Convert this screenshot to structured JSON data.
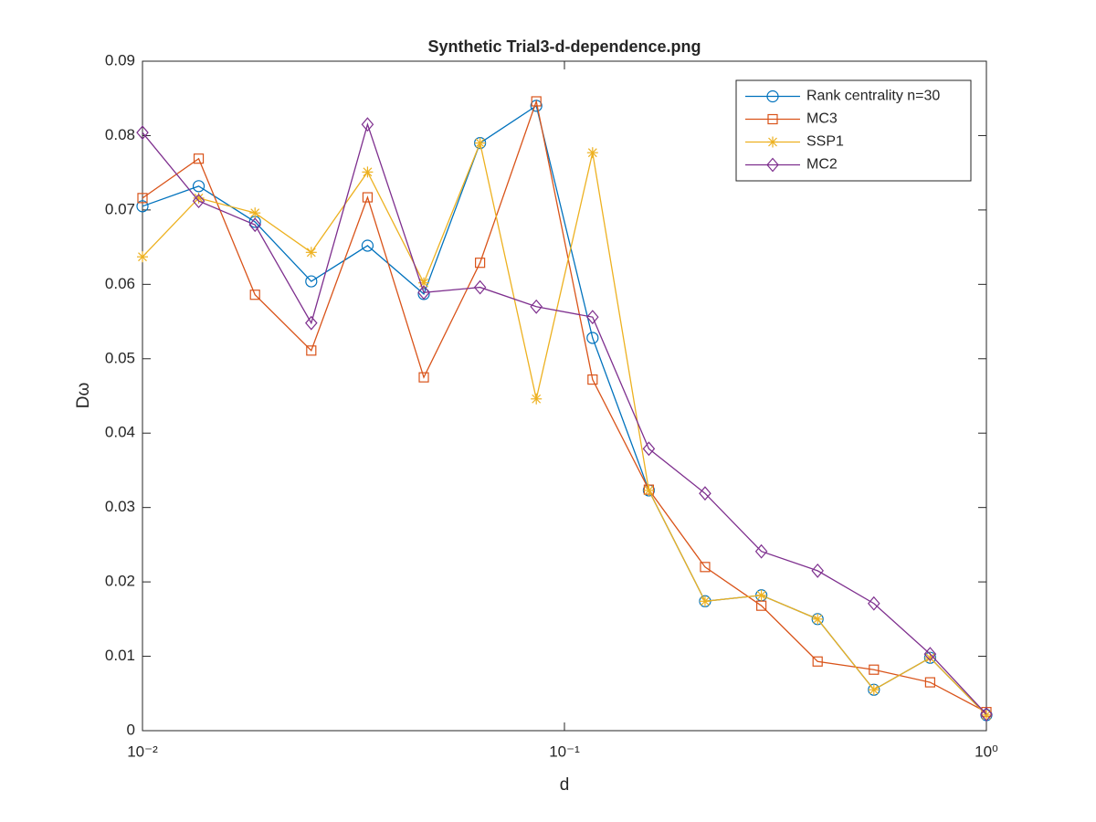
{
  "chart_data": {
    "type": "line",
    "title": "Synthetic Trial3-d-dependence.png",
    "x_label": "d",
    "y_label": "Dω",
    "x_scale": "log",
    "x": [
      0.01,
      0.01359,
      0.01848,
      0.02512,
      0.03415,
      0.04642,
      0.0631,
      0.08577,
      0.1166,
      0.1585,
      0.2154,
      0.2929,
      0.3981,
      0.5412,
      0.7356,
      1
    ],
    "series": [
      {
        "name": "Rank centrality n=30",
        "color": "#0072BD",
        "marker": "circle",
        "values": [
          0.0705,
          0.0732,
          0.0684,
          0.0604,
          0.0652,
          0.0587,
          0.079,
          0.084,
          0.0528,
          0.0323,
          0.0174,
          0.0182,
          0.015,
          0.0055,
          0.0098,
          0.0021
        ]
      },
      {
        "name": "MC3",
        "color": "#D95319",
        "marker": "square",
        "values": [
          0.0716,
          0.0769,
          0.0586,
          0.0511,
          0.0717,
          0.0475,
          0.0629,
          0.0846,
          0.0472,
          0.0324,
          0.022,
          0.0168,
          0.0093,
          0.0082,
          0.0065,
          0.0025
        ]
      },
      {
        "name": "SSP1",
        "color": "#EDB120",
        "marker": "asterisk",
        "values": [
          0.0637,
          0.0716,
          0.0696,
          0.0643,
          0.0751,
          0.0602,
          0.079,
          0.0446,
          0.0777,
          0.0323,
          0.0174,
          0.0182,
          0.015,
          0.0055,
          0.0098,
          0.0021
        ]
      },
      {
        "name": "MC2",
        "color": "#7E2F8E",
        "marker": "diamond",
        "values": [
          0.0804,
          0.0712,
          0.068,
          0.0548,
          0.0815,
          0.0589,
          0.0596,
          0.057,
          0.0556,
          0.0379,
          0.0319,
          0.0241,
          0.0215,
          0.0171,
          0.0103,
          0.0022
        ]
      }
    ],
    "xlim": [
      0.01,
      1
    ],
    "xticks": [
      {
        "value": 0.01,
        "label": "10⁻²"
      },
      {
        "value": 0.1,
        "label": "10⁻¹"
      },
      {
        "value": 1,
        "label": "10⁰"
      }
    ],
    "ylim": [
      0,
      0.09
    ],
    "yticks": [
      0,
      0.01,
      0.02,
      0.03,
      0.04,
      0.05,
      0.06,
      0.07,
      0.08,
      0.09
    ],
    "grid": false,
    "legend": "northeast"
  }
}
